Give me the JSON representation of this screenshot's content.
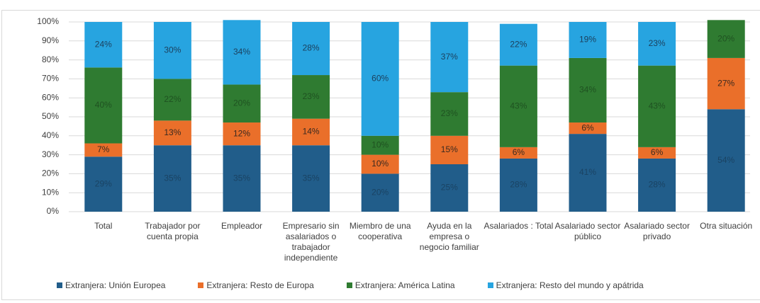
{
  "chart_data": {
    "type": "stacked-bar",
    "categories": [
      "Total",
      "Trabajador por cuenta propia",
      "Empleador",
      "Empresario sin asalariados o trabajador independiente",
      "Miembro de una cooperativa",
      "Ayuda en la empresa o negocio familiar",
      "Asalariados : Total",
      "Asalariado sector público",
      "Asalariado sector privado",
      "Otra situación"
    ],
    "series": [
      {
        "name": "Extranjera: Unión Europea",
        "color": "#215d8a",
        "label_color": "#1a4363",
        "values": [
          29,
          35,
          35,
          35,
          20,
          25,
          28,
          41,
          28,
          54
        ],
        "value_labels": [
          "29%",
          "35%",
          "35%",
          "35%",
          "20%",
          "25%",
          "28%",
          "41%",
          "28%",
          "54%"
        ]
      },
      {
        "name": "Extranjera: Resto de Europa",
        "color": "#ea6f2a",
        "label_color": "#3a2a20",
        "values": [
          7,
          13,
          12,
          14,
          10,
          15,
          6,
          6,
          6,
          27
        ],
        "value_labels": [
          "7%",
          "13%",
          "12%",
          "14%",
          "10%",
          "15%",
          "6%",
          "6%",
          "6%",
          "27%"
        ]
      },
      {
        "name": "Extranjera: América Latina",
        "color": "#2f7b31",
        "label_color": "#1f5221",
        "values": [
          40,
          22,
          20,
          23,
          10,
          23,
          43,
          34,
          43,
          20
        ],
        "value_labels": [
          "40%",
          "22%",
          "20%",
          "23%",
          "10%",
          "23%",
          "43%",
          "34%",
          "43%",
          "20%"
        ]
      },
      {
        "name": "Extranjera: Resto del mundo y apátrida",
        "color": "#27a4e0",
        "label_color": "#1c3f5c",
        "values": [
          24,
          30,
          34,
          28,
          60,
          37,
          22,
          19,
          23,
          null
        ],
        "value_labels": [
          "24%",
          "30%",
          "34%",
          "28%",
          "60%",
          "37%",
          "22%",
          "19%",
          "23%",
          null
        ]
      }
    ],
    "ylim": [
      0,
      100
    ],
    "yticks": [
      {
        "value": 0,
        "label": "0%"
      },
      {
        "value": 10,
        "label": "10%"
      },
      {
        "value": 20,
        "label": "20%"
      },
      {
        "value": 30,
        "label": "30%"
      },
      {
        "value": 40,
        "label": "40%"
      },
      {
        "value": 50,
        "label": "50%"
      },
      {
        "value": 60,
        "label": "60%"
      },
      {
        "value": 70,
        "label": "70%"
      },
      {
        "value": 80,
        "label": "80%"
      },
      {
        "value": 90,
        "label": "90%"
      },
      {
        "value": 100,
        "label": "100%"
      }
    ],
    "grid": true
  }
}
